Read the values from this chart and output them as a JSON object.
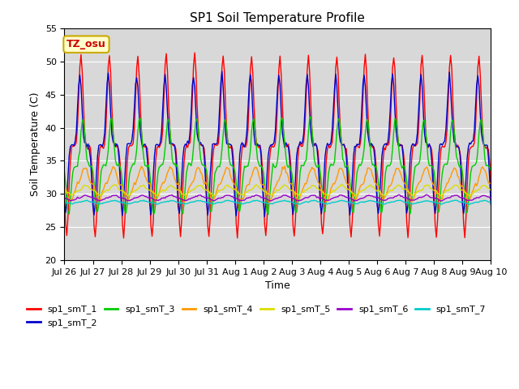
{
  "title": "SP1 Soil Temperature Profile",
  "xlabel": "Time",
  "ylabel": "Soil Temperature (C)",
  "ylim": [
    20,
    55
  ],
  "background_color": "#d8d8d8",
  "annotation_text": "TZ_osu",
  "annotation_bg": "#ffffcc",
  "annotation_border": "#ccaa00",
  "series_colors": {
    "sp1_smT_1": "#ff0000",
    "sp1_smT_2": "#0000cc",
    "sp1_smT_3": "#00cc00",
    "sp1_smT_4": "#ff9900",
    "sp1_smT_5": "#dddd00",
    "sp1_smT_6": "#9900cc",
    "sp1_smT_7": "#00cccc"
  },
  "tick_labels": [
    "Jul 26",
    "Jul 27",
    "Jul 28",
    "Jul 29",
    "Jul 30",
    "Jul 31",
    "Aug 1",
    "Aug 2",
    "Aug 3",
    "Aug 4",
    "Aug 5",
    "Aug 6",
    "Aug 7",
    "Aug 8",
    "Aug 9",
    "Aug 10"
  ]
}
